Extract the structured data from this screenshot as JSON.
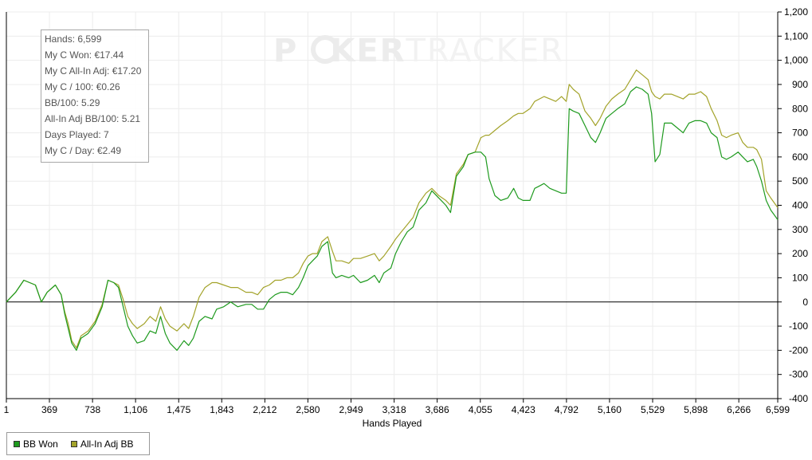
{
  "stats": [
    "Hands: 6,599",
    "My C Won: €17.44",
    "My C All-In Adj: €17.20",
    "My C / 100: €0.26",
    "BB/100: 5.29",
    "All-In Adj BB/100: 5.21",
    "Days Played: 7",
    "My C / Day: €2.49"
  ],
  "watermark": {
    "prefix": "P",
    "mid": "KER",
    "suffix": "TRACKER"
  },
  "legend": [
    {
      "label": "BB Won",
      "color": "#1e9a1e"
    },
    {
      "label": "All-In Adj BB",
      "color": "#a3a32a"
    }
  ],
  "chart_data": {
    "type": "line",
    "xlabel": "Hands Played",
    "ylabel": "",
    "xlim": [
      1,
      6599
    ],
    "ylim": [
      -400,
      1200
    ],
    "x_ticks": [
      1,
      369,
      738,
      1106,
      1475,
      1843,
      2212,
      2580,
      2949,
      3318,
      3686,
      4055,
      4423,
      4792,
      5160,
      5529,
      5898,
      6266,
      6599
    ],
    "x_tick_labels": [
      "1",
      "369",
      "738",
      "1,106",
      "1,475",
      "1,843",
      "2,212",
      "2,580",
      "2,949",
      "3,318",
      "3,686",
      "4,055",
      "4,423",
      "4,792",
      "5,160",
      "5,529",
      "5,898",
      "6,266",
      "6,599"
    ],
    "y_ticks": [
      -400,
      -300,
      -200,
      -100,
      0,
      100,
      200,
      300,
      400,
      500,
      600,
      700,
      800,
      900,
      1000,
      1100,
      1200
    ],
    "y_tick_labels": [
      "-400",
      "-300",
      "-200",
      "-100",
      "0",
      "100",
      "200",
      "300",
      "400",
      "500",
      "600",
      "700",
      "800",
      "900",
      "1,000",
      "1,100",
      "1,200"
    ],
    "y_axis_side": "right",
    "grid": true,
    "legend_position": "bottom-left",
    "series": [
      {
        "name": "BB Won",
        "color": "#1e9a1e",
        "points": [
          [
            1,
            0
          ],
          [
            80,
            40
          ],
          [
            150,
            90
          ],
          [
            250,
            70
          ],
          [
            300,
            0
          ],
          [
            350,
            40
          ],
          [
            420,
            70
          ],
          [
            470,
            30
          ],
          [
            500,
            -50
          ],
          [
            530,
            -110
          ],
          [
            560,
            -170
          ],
          [
            600,
            -200
          ],
          [
            640,
            -150
          ],
          [
            700,
            -130
          ],
          [
            760,
            -90
          ],
          [
            820,
            -20
          ],
          [
            870,
            90
          ],
          [
            920,
            80
          ],
          [
            960,
            60
          ],
          [
            1000,
            -20
          ],
          [
            1040,
            -100
          ],
          [
            1080,
            -140
          ],
          [
            1120,
            -170
          ],
          [
            1180,
            -160
          ],
          [
            1230,
            -120
          ],
          [
            1280,
            -130
          ],
          [
            1320,
            -60
          ],
          [
            1360,
            -130
          ],
          [
            1400,
            -170
          ],
          [
            1460,
            -200
          ],
          [
            1520,
            -160
          ],
          [
            1560,
            -180
          ],
          [
            1600,
            -150
          ],
          [
            1650,
            -80
          ],
          [
            1700,
            -60
          ],
          [
            1760,
            -70
          ],
          [
            1800,
            -30
          ],
          [
            1860,
            -20
          ],
          [
            1920,
            0
          ],
          [
            1980,
            -20
          ],
          [
            2050,
            -10
          ],
          [
            2100,
            -10
          ],
          [
            2150,
            -30
          ],
          [
            2200,
            -30
          ],
          [
            2250,
            10
          ],
          [
            2300,
            30
          ],
          [
            2350,
            40
          ],
          [
            2400,
            40
          ],
          [
            2450,
            30
          ],
          [
            2500,
            60
          ],
          [
            2540,
            100
          ],
          [
            2580,
            150
          ],
          [
            2620,
            170
          ],
          [
            2660,
            190
          ],
          [
            2700,
            230
          ],
          [
            2750,
            250
          ],
          [
            2790,
            120
          ],
          [
            2820,
            100
          ],
          [
            2870,
            110
          ],
          [
            2930,
            100
          ],
          [
            2970,
            110
          ],
          [
            3030,
            80
          ],
          [
            3090,
            90
          ],
          [
            3150,
            110
          ],
          [
            3190,
            80
          ],
          [
            3230,
            120
          ],
          [
            3290,
            140
          ],
          [
            3330,
            200
          ],
          [
            3380,
            250
          ],
          [
            3430,
            290
          ],
          [
            3480,
            310
          ],
          [
            3530,
            380
          ],
          [
            3590,
            410
          ],
          [
            3640,
            460
          ],
          [
            3700,
            430
          ],
          [
            3760,
            400
          ],
          [
            3800,
            370
          ],
          [
            3850,
            520
          ],
          [
            3910,
            560
          ],
          [
            3950,
            610
          ],
          [
            4010,
            620
          ],
          [
            4060,
            620
          ],
          [
            4100,
            600
          ],
          [
            4130,
            510
          ],
          [
            4180,
            440
          ],
          [
            4230,
            420
          ],
          [
            4290,
            430
          ],
          [
            4340,
            470
          ],
          [
            4380,
            430
          ],
          [
            4420,
            420
          ],
          [
            4480,
            420
          ],
          [
            4520,
            470
          ],
          [
            4560,
            480
          ],
          [
            4600,
            490
          ],
          [
            4650,
            470
          ],
          [
            4700,
            460
          ],
          [
            4750,
            450
          ],
          [
            4790,
            450
          ],
          [
            4815,
            800
          ],
          [
            4850,
            790
          ],
          [
            4900,
            780
          ],
          [
            4950,
            730
          ],
          [
            5000,
            680
          ],
          [
            5040,
            660
          ],
          [
            5080,
            700
          ],
          [
            5130,
            760
          ],
          [
            5180,
            780
          ],
          [
            5230,
            800
          ],
          [
            5290,
            820
          ],
          [
            5340,
            870
          ],
          [
            5390,
            890
          ],
          [
            5440,
            880
          ],
          [
            5490,
            860
          ],
          [
            5520,
            780
          ],
          [
            5550,
            580
          ],
          [
            5590,
            610
          ],
          [
            5630,
            740
          ],
          [
            5690,
            740
          ],
          [
            5740,
            720
          ],
          [
            5790,
            700
          ],
          [
            5840,
            740
          ],
          [
            5890,
            750
          ],
          [
            5940,
            750
          ],
          [
            5990,
            740
          ],
          [
            6030,
            700
          ],
          [
            6080,
            680
          ],
          [
            6120,
            600
          ],
          [
            6160,
            590
          ],
          [
            6200,
            600
          ],
          [
            6260,
            620
          ],
          [
            6300,
            600
          ],
          [
            6340,
            580
          ],
          [
            6390,
            590
          ],
          [
            6420,
            560
          ],
          [
            6460,
            500
          ],
          [
            6500,
            420
          ],
          [
            6540,
            380
          ],
          [
            6570,
            360
          ],
          [
            6599,
            340
          ]
        ]
      },
      {
        "name": "All-In Adj BB",
        "color": "#a3a32a",
        "points": [
          [
            1,
            0
          ],
          [
            80,
            40
          ],
          [
            150,
            90
          ],
          [
            250,
            70
          ],
          [
            300,
            0
          ],
          [
            350,
            40
          ],
          [
            420,
            70
          ],
          [
            470,
            30
          ],
          [
            500,
            -40
          ],
          [
            530,
            -90
          ],
          [
            560,
            -160
          ],
          [
            600,
            -190
          ],
          [
            640,
            -140
          ],
          [
            700,
            -120
          ],
          [
            760,
            -80
          ],
          [
            820,
            -10
          ],
          [
            870,
            90
          ],
          [
            920,
            80
          ],
          [
            960,
            70
          ],
          [
            1000,
            10
          ],
          [
            1040,
            -60
          ],
          [
            1080,
            -90
          ],
          [
            1120,
            -110
          ],
          [
            1180,
            -90
          ],
          [
            1230,
            -60
          ],
          [
            1280,
            -80
          ],
          [
            1320,
            -20
          ],
          [
            1360,
            -70
          ],
          [
            1400,
            -100
          ],
          [
            1460,
            -120
          ],
          [
            1520,
            -90
          ],
          [
            1560,
            -110
          ],
          [
            1600,
            -60
          ],
          [
            1650,
            20
          ],
          [
            1700,
            60
          ],
          [
            1760,
            80
          ],
          [
            1800,
            80
          ],
          [
            1860,
            70
          ],
          [
            1920,
            60
          ],
          [
            1980,
            60
          ],
          [
            2050,
            40
          ],
          [
            2100,
            40
          ],
          [
            2150,
            30
          ],
          [
            2200,
            60
          ],
          [
            2250,
            70
          ],
          [
            2300,
            90
          ],
          [
            2350,
            90
          ],
          [
            2400,
            100
          ],
          [
            2450,
            100
          ],
          [
            2500,
            120
          ],
          [
            2540,
            160
          ],
          [
            2580,
            190
          ],
          [
            2620,
            200
          ],
          [
            2660,
            200
          ],
          [
            2700,
            250
          ],
          [
            2750,
            270
          ],
          [
            2790,
            210
          ],
          [
            2820,
            170
          ],
          [
            2870,
            170
          ],
          [
            2930,
            160
          ],
          [
            2970,
            180
          ],
          [
            3030,
            180
          ],
          [
            3090,
            190
          ],
          [
            3150,
            200
          ],
          [
            3190,
            170
          ],
          [
            3230,
            190
          ],
          [
            3290,
            230
          ],
          [
            3330,
            260
          ],
          [
            3380,
            290
          ],
          [
            3430,
            320
          ],
          [
            3480,
            350
          ],
          [
            3530,
            410
          ],
          [
            3590,
            450
          ],
          [
            3640,
            470
          ],
          [
            3700,
            440
          ],
          [
            3760,
            420
          ],
          [
            3800,
            400
          ],
          [
            3850,
            530
          ],
          [
            3910,
            570
          ],
          [
            3950,
            610
          ],
          [
            4010,
            620
          ],
          [
            4060,
            680
          ],
          [
            4100,
            690
          ],
          [
            4130,
            690
          ],
          [
            4180,
            710
          ],
          [
            4230,
            730
          ],
          [
            4290,
            750
          ],
          [
            4340,
            770
          ],
          [
            4380,
            780
          ],
          [
            4420,
            780
          ],
          [
            4480,
            800
          ],
          [
            4520,
            830
          ],
          [
            4560,
            840
          ],
          [
            4600,
            850
          ],
          [
            4650,
            840
          ],
          [
            4700,
            830
          ],
          [
            4750,
            850
          ],
          [
            4790,
            830
          ],
          [
            4815,
            900
          ],
          [
            4850,
            880
          ],
          [
            4900,
            860
          ],
          [
            4950,
            790
          ],
          [
            5000,
            760
          ],
          [
            5040,
            730
          ],
          [
            5080,
            760
          ],
          [
            5130,
            810
          ],
          [
            5180,
            840
          ],
          [
            5230,
            860
          ],
          [
            5290,
            880
          ],
          [
            5340,
            920
          ],
          [
            5390,
            960
          ],
          [
            5440,
            940
          ],
          [
            5490,
            920
          ],
          [
            5520,
            870
          ],
          [
            5550,
            850
          ],
          [
            5590,
            840
          ],
          [
            5630,
            860
          ],
          [
            5690,
            860
          ],
          [
            5740,
            850
          ],
          [
            5790,
            840
          ],
          [
            5840,
            860
          ],
          [
            5890,
            860
          ],
          [
            5940,
            870
          ],
          [
            5990,
            850
          ],
          [
            6030,
            800
          ],
          [
            6080,
            750
          ],
          [
            6120,
            690
          ],
          [
            6160,
            680
          ],
          [
            6200,
            690
          ],
          [
            6260,
            700
          ],
          [
            6300,
            660
          ],
          [
            6340,
            640
          ],
          [
            6390,
            640
          ],
          [
            6420,
            630
          ],
          [
            6460,
            590
          ],
          [
            6500,
            460
          ],
          [
            6540,
            430
          ],
          [
            6570,
            410
          ],
          [
            6599,
            390
          ]
        ]
      }
    ]
  }
}
